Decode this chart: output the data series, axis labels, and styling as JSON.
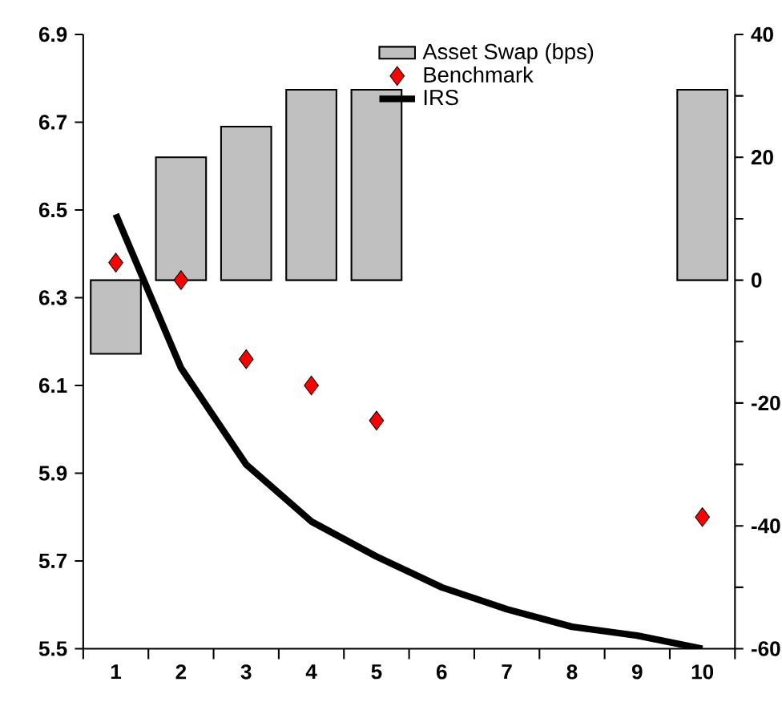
{
  "chart_data": {
    "type": "bar",
    "categories": [
      "1",
      "2",
      "3",
      "4",
      "5",
      "6",
      "7",
      "8",
      "9",
      "10"
    ],
    "series": [
      {
        "name": "Asset Swap (bps)",
        "axis": "y2",
        "color": "#c0c0c0",
        "values": [
          -12,
          20,
          25,
          31,
          31,
          null,
          null,
          null,
          null,
          31
        ]
      },
      {
        "name": "Benchmark",
        "type": "scatter",
        "marker": "diamond",
        "color": "#ff0000",
        "values": [
          6.38,
          6.34,
          6.16,
          6.1,
          6.02,
          null,
          null,
          null,
          null,
          5.8
        ]
      },
      {
        "name": "IRS",
        "type": "line",
        "marker": "none",
        "color": "#000000",
        "values": [
          6.49,
          6.14,
          5.92,
          5.79,
          5.71,
          5.64,
          5.59,
          5.55,
          5.53,
          5.5
        ]
      }
    ],
    "ylim": [
      5.5,
      6.9
    ],
    "yticks": [
      5.5,
      5.7,
      5.9,
      6.1,
      6.3,
      6.5,
      6.7,
      6.9
    ],
    "y2lim": [
      -60,
      40
    ],
    "y2ticks": [
      -60,
      {
        "value": -50,
        "label": null
      },
      -40,
      {
        "value": -30,
        "label": null
      },
      -20,
      {
        "value": -10,
        "label": null
      },
      0,
      {
        "value": 10,
        "label": null
      },
      20,
      {
        "value": 30,
        "label": null
      },
      40
    ],
    "legend": "top",
    "grid": false
  }
}
